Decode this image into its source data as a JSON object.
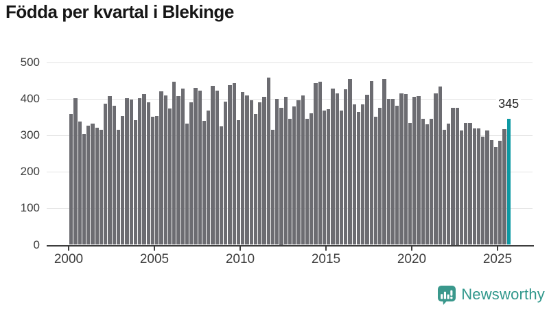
{
  "header": {
    "title": "Födda per kvartal i Blekinge"
  },
  "chart_data": {
    "type": "bar",
    "title": "Födda per kvartal i Blekinge",
    "ylabel": "",
    "xlabel": "",
    "start": {
      "year": 2000,
      "quarter": 1
    },
    "end": {
      "year": 2025,
      "quarter": 3
    },
    "values": [
      359,
      402,
      338,
      305,
      327,
      332,
      322,
      315,
      387,
      407,
      381,
      316,
      353,
      402,
      399,
      342,
      402,
      413,
      390,
      352,
      354,
      421,
      410,
      374,
      447,
      408,
      428,
      332,
      390,
      430,
      423,
      339,
      368,
      436,
      422,
      325,
      393,
      438,
      443,
      342,
      419,
      410,
      396,
      359,
      391,
      406,
      458,
      316,
      401,
      375,
      406,
      346,
      379,
      396,
      409,
      345,
      360,
      444,
      448,
      368,
      371,
      429,
      415,
      368,
      427,
      454,
      385,
      365,
      385,
      412,
      449,
      351,
      376,
      454,
      400,
      401,
      381,
      415,
      413,
      335,
      406,
      408,
      345,
      331,
      346,
      415,
      434,
      315,
      333,
      375,
      375,
      313,
      334,
      334,
      319,
      319,
      296,
      313,
      288,
      268,
      286,
      317,
      345
    ],
    "highlight": {
      "index": 102,
      "quarter": "2025-Q3",
      "value": 345,
      "label": "345"
    },
    "xticks": [
      "2000",
      "2005",
      "2010",
      "2015",
      "2020",
      "2025"
    ],
    "yticks": [
      0,
      100,
      200,
      300,
      400,
      500
    ],
    "ylim": [
      0,
      500
    ],
    "grid": true,
    "legend": "none",
    "bar_color": "#6c6c71",
    "highlight_color": "#0d99a3",
    "gridline_color": "#e3e3e3",
    "axis_color": "#3d3d3d",
    "label_color": "#3c3c3c"
  },
  "footer": {
    "brand": "Newsworthy",
    "brand_color": "#2f978b",
    "logo_icon": "speech-bubble-bar-chart-icon",
    "logo_color": "#3a988c"
  }
}
